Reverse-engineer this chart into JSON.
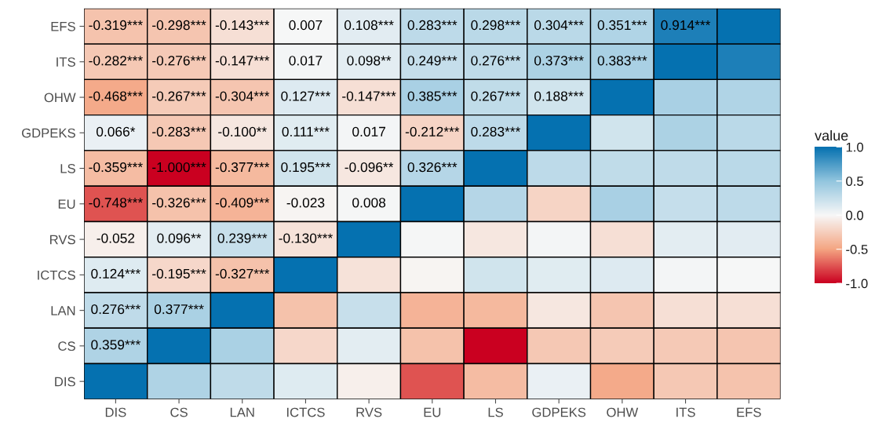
{
  "chart_data": {
    "type": "heatmap",
    "categories": [
      "DIS",
      "CS",
      "LAN",
      "ICTCS",
      "RVS",
      "EU",
      "LS",
      "GDPEKS",
      "OHW",
      "ITS",
      "EFS"
    ],
    "y_categories": [
      "EFS",
      "ITS",
      "OHW",
      "GDPEKS",
      "LS",
      "EU",
      "RVS",
      "ICTCS",
      "LAN",
      "CS",
      "DIS"
    ],
    "cells": [
      [
        -0.319,
        -0.298,
        -0.143,
        0.007,
        0.108,
        0.283,
        0.298,
        0.304,
        0.351,
        0.914,
        1
      ],
      [
        -0.282,
        -0.276,
        -0.147,
        0.017,
        0.098,
        0.249,
        0.276,
        0.373,
        0.383,
        1,
        0.914
      ],
      [
        -0.468,
        -0.267,
        -0.304,
        0.127,
        -0.147,
        0.385,
        0.267,
        0.188,
        1,
        0.383,
        0.351
      ],
      [
        0.066,
        -0.283,
        -0.1,
        0.111,
        0.017,
        -0.212,
        0.283,
        1,
        0.188,
        0.373,
        0.304
      ],
      [
        -0.359,
        -1.0,
        -0.377,
        0.195,
        -0.096,
        0.326,
        1,
        0.283,
        0.267,
        0.276,
        0.298
      ],
      [
        -0.748,
        -0.326,
        -0.409,
        -0.023,
        0.008,
        1,
        0.326,
        -0.212,
        0.385,
        0.249,
        0.283
      ],
      [
        -0.052,
        0.096,
        0.239,
        -0.13,
        1,
        0.008,
        -0.096,
        0.017,
        -0.147,
        0.098,
        0.108
      ],
      [
        0.124,
        -0.195,
        -0.327,
        1,
        -0.13,
        -0.023,
        0.195,
        0.111,
        0.127,
        0.017,
        0.007
      ],
      [
        0.276,
        0.377,
        1,
        -0.327,
        0.239,
        -0.409,
        -0.377,
        -0.1,
        -0.304,
        -0.147,
        -0.143
      ],
      [
        0.359,
        1,
        0.377,
        -0.195,
        0.096,
        -0.326,
        -1.0,
        -0.283,
        -0.267,
        -0.276,
        -0.298
      ],
      [
        1,
        0.359,
        0.276,
        0.124,
        -0.052,
        -0.748,
        -0.359,
        0.066,
        -0.468,
        -0.282,
        -0.319
      ]
    ],
    "cell_labels": [
      [
        "-0.319***",
        "-0.298***",
        "-0.143***",
        "0.007",
        "0.108***",
        "0.283***",
        "0.298***",
        "0.304***",
        "0.351***",
        "0.914***",
        null
      ],
      [
        "-0.282***",
        "-0.276***",
        "-0.147***",
        "0.017",
        "0.098**",
        "0.249***",
        "0.276***",
        "0.373***",
        "0.383***",
        null,
        null
      ],
      [
        "-0.468***",
        "-0.267***",
        "-0.304***",
        "0.127***",
        "-0.147***",
        "0.385***",
        "0.267***",
        "0.188***",
        null,
        null,
        null
      ],
      [
        "0.066*",
        "-0.283***",
        "-0.100**",
        "0.111***",
        "0.017",
        "-0.212***",
        "0.283***",
        null,
        null,
        null,
        null
      ],
      [
        "-0.359***",
        "-1.000***",
        "-0.377***",
        "0.195***",
        "-0.096**",
        "0.326***",
        null,
        null,
        null,
        null,
        null
      ],
      [
        "-0.748***",
        "-0.326***",
        "-0.409***",
        "-0.023",
        "0.008",
        null,
        null,
        null,
        null,
        null,
        null
      ],
      [
        "-0.052",
        "0.096**",
        "0.239***",
        "-0.130***",
        null,
        null,
        null,
        null,
        null,
        null,
        null
      ],
      [
        "0.124***",
        "-0.195***",
        "-0.327***",
        null,
        null,
        null,
        null,
        null,
        null,
        null,
        null
      ],
      [
        "0.276***",
        "0.377***",
        null,
        null,
        null,
        null,
        null,
        null,
        null,
        null,
        null
      ],
      [
        "0.359***",
        null,
        null,
        null,
        null,
        null,
        null,
        null,
        null,
        null,
        null
      ],
      [
        null,
        null,
        null,
        null,
        null,
        null,
        null,
        null,
        null,
        null,
        null
      ]
    ],
    "clabel": "value",
    "clim": [
      -1,
      1
    ],
    "cticks": [
      {
        "value": -1,
        "label": "-1.0"
      },
      {
        "value": -0.5,
        "label": "-0.5"
      },
      {
        "value": 0,
        "label": "0.0"
      },
      {
        "value": 0.5,
        "label": "0.5"
      },
      {
        "value": 1,
        "label": "1.0"
      }
    ]
  }
}
